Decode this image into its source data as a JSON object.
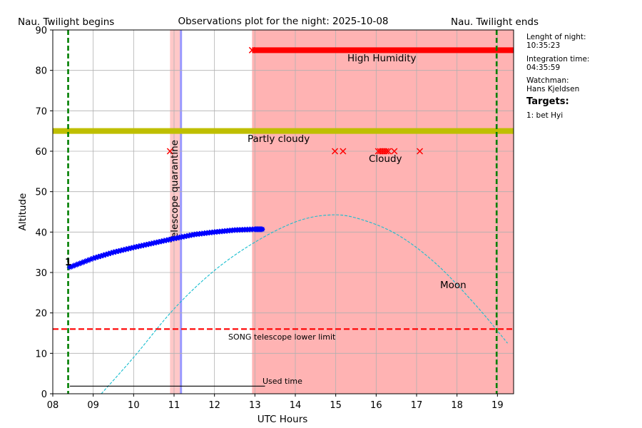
{
  "header": {
    "left": "Nau. Twilight begins",
    "center": "Observations plot for the night: 2025-10-08",
    "right": "Nau. Twilight ends"
  },
  "sidebar": {
    "night_length_label": "Lenght of night:",
    "night_length_value": "10:35:23",
    "integration_label": "Integration time:",
    "integration_value": "04:35:59",
    "watchman_label": "Watchman:",
    "watchman_value": "Hans Kjeldsen",
    "targets_title": "Targets:",
    "targets": [
      "1: bet Hyi"
    ]
  },
  "colors": {
    "weather_region": "#ffb3b3",
    "humidity_line": "#ff0000",
    "cloud_line": "#bfbf00",
    "twilight": "#007f00",
    "limit": "#ff0000",
    "moon": "#17becf",
    "target": "#0000ff",
    "quarantine_fill": "#ffc8c8",
    "quarantine_edge": "#9999ff"
  },
  "chart_data": {
    "type": "scatter",
    "title": "Observations plot for the night: 2025-10-08",
    "xlabel": "UTC Hours",
    "ylabel": "Altitude",
    "xlim": [
      8.0,
      19.4
    ],
    "ylim": [
      0,
      90
    ],
    "xticks": [
      "08",
      "09",
      "10",
      "11",
      "12",
      "13",
      "14",
      "15",
      "16",
      "17",
      "18",
      "19"
    ],
    "yticks": [
      "0",
      "10",
      "20",
      "30",
      "40",
      "50",
      "60",
      "70",
      "80",
      "90"
    ],
    "grid": true,
    "twilight": {
      "begin": 8.38,
      "end": 18.98
    },
    "lower_limit": {
      "value": 16,
      "label": "SONG telescope lower limit"
    },
    "weather_region": {
      "x_start": 12.93,
      "x_end": 19.4
    },
    "humidity": {
      "label": "High Humidity",
      "x_start": 12.93,
      "x_end": 19.4,
      "y": 85
    },
    "cloud_band": {
      "label": "Partly cloudy",
      "x_start": 8.0,
      "x_end": 19.4,
      "y": 65
    },
    "cloudy": {
      "label": "Cloudy",
      "y": 60,
      "x": [
        10.9,
        14.98,
        15.18,
        16.05,
        16.1,
        16.15,
        16.2,
        16.25,
        16.3,
        16.45,
        17.08
      ]
    },
    "quarantine": {
      "label": "Telescope quarantine",
      "x_start": 10.9,
      "x_end": 11.18
    },
    "moon": {
      "label": "Moon",
      "x": [
        9.2,
        10.0,
        11.0,
        12.0,
        13.0,
        14.0,
        14.8,
        15.5,
        16.5,
        17.5,
        18.5,
        19.25
      ],
      "y": [
        0,
        9,
        21,
        30.5,
        37.5,
        42.5,
        44.2,
        43.5,
        39.5,
        32,
        21.5,
        12.5
      ]
    },
    "target_series": {
      "name": "1",
      "x": [
        8.42,
        9.0,
        9.5,
        10.0,
        10.5,
        11.0,
        11.5,
        12.0,
        12.5,
        13.0,
        13.2
      ],
      "y": [
        31.3,
        33.5,
        35.0,
        36.2,
        37.3,
        38.4,
        39.4,
        40.0,
        40.5,
        40.7,
        40.7
      ]
    },
    "used_time": {
      "label": "Used time",
      "x_start": 8.42,
      "x_end": 13.25,
      "y": 1
    }
  }
}
